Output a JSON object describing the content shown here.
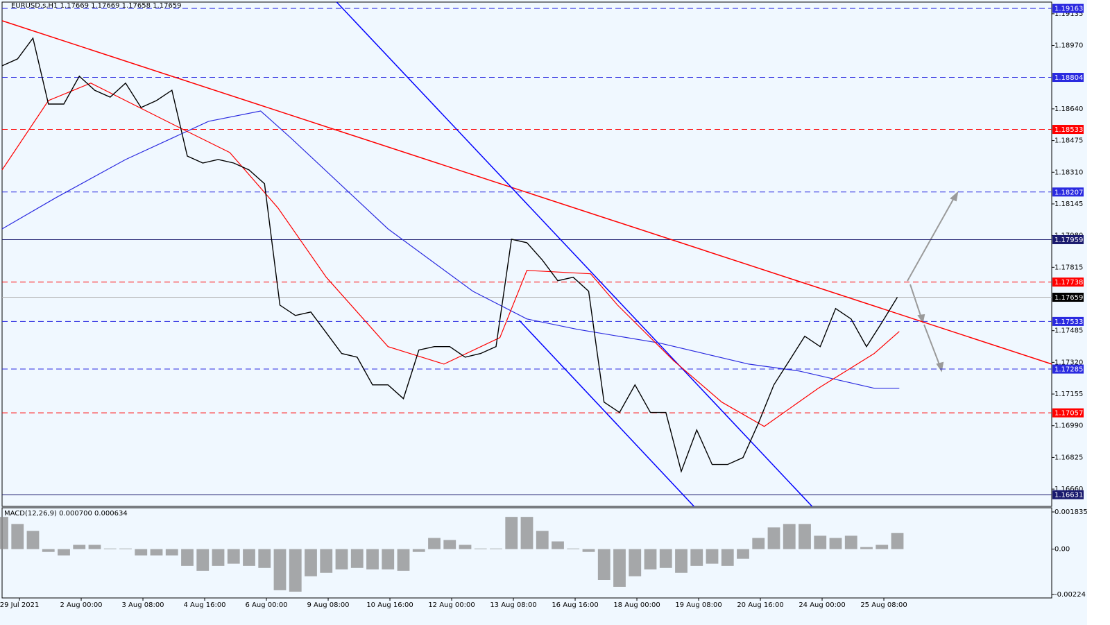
{
  "chart_data": [
    {
      "type": "line",
      "title": "EURUSD.s,H1  1.17669 1.17669 1.17658 1.17659",
      "x": [
        0,
        8,
        16,
        24,
        32,
        40,
        48,
        56,
        64,
        72,
        80,
        88,
        96,
        104,
        112,
        120,
        128,
        136,
        144,
        152,
        160,
        168,
        176,
        184,
        192,
        200,
        208,
        216,
        224,
        232,
        240,
        248,
        256,
        264,
        272,
        280,
        288,
        296,
        304,
        312,
        320,
        328,
        336,
        344,
        352,
        360,
        368,
        376,
        384,
        392,
        400,
        408,
        416,
        424,
        432,
        440,
        448,
        456,
        464
      ],
      "series": [
        {
          "color": "#000000",
          "values": [
            1.18864,
            1.189,
            1.19008,
            1.18665,
            1.18665,
            1.1881,
            1.18737,
            1.18701,
            1.18774,
            1.18647,
            1.18683,
            1.18737,
            1.18394,
            1.18358,
            1.18376,
            1.18358,
            1.18322,
            1.1825,
            1.17618,
            1.17564,
            1.17582,
            1.17474,
            1.17366,
            1.17347,
            1.17203,
            1.17203,
            1.17131,
            1.17384,
            1.17402,
            1.17402,
            1.17347,
            1.17366,
            1.17402,
            1.17961,
            1.17943,
            1.17853,
            1.17745,
            1.17763,
            1.1769,
            1.17113,
            1.17059,
            1.17203,
            1.17059,
            1.17059,
            1.16752,
            1.16968,
            1.16788,
            1.16788,
            1.16824,
            1.17004,
            1.17203,
            1.17329,
            1.17456,
            1.17402,
            1.176,
            1.17546,
            1.17402,
            1.17528,
            1.17659
          ]
        },
        {
          "color": "#ff0000",
          "x": [
            0,
            24,
            46,
            89,
            118,
            143,
            168,
            200,
            229,
            258,
            272,
            305,
            319,
            348,
            373,
            395,
            423,
            452,
            465
          ],
          "values": [
            1.18322,
            1.18683,
            1.18774,
            1.18557,
            1.18413,
            1.18124,
            1.17763,
            1.17402,
            1.17311,
            1.17449,
            1.17799,
            1.17781,
            1.17618,
            1.17329,
            1.17113,
            1.16986,
            1.17185,
            1.17366,
            1.17481
          ]
        },
        {
          "color": "#2a2ae0",
          "x": [
            0,
            28,
            64,
            107,
            134,
            150,
            200,
            244,
            272,
            298,
            341,
            387,
            413,
            452,
            465
          ],
          "values": [
            1.18015,
            1.18178,
            1.18376,
            1.18575,
            1.18629,
            1.18485,
            1.18015,
            1.1769,
            1.17546,
            1.17492,
            1.1742,
            1.17311,
            1.17275,
            1.17185,
            1.17185
          ]
        }
      ],
      "trendlines": [
        {
          "color": "#ff0000",
          "x": [
            0,
            544
          ],
          "values": [
            1.19099,
            1.17311
          ]
        },
        {
          "color": "#0000ff",
          "x": [
            173.4,
            419.8
          ],
          "values": [
            1.19196,
            1.1657
          ]
        },
        {
          "color": "#0000ff",
          "x": [
            268,
            358.6
          ],
          "values": [
            1.17539,
            1.1657
          ]
        }
      ],
      "levels": [
        {
          "value": 1.19163,
          "color": "#2a2ae0",
          "style": "dashed"
        },
        {
          "value": 1.18804,
          "color": "#2a2ae0",
          "style": "dashed"
        },
        {
          "value": 1.18533,
          "color": "#ff0000",
          "style": "dashed"
        },
        {
          "value": 1.18207,
          "color": "#2a2ae0",
          "style": "dashed"
        },
        {
          "value": 1.17959,
          "color": "#1a1a6e",
          "style": "solid"
        },
        {
          "value": 1.17738,
          "color": "#ff0000",
          "style": "dashed"
        },
        {
          "value": 1.17659,
          "color": "#000000",
          "style": "solid"
        },
        {
          "value": 1.17533,
          "color": "#2a2ae0",
          "style": "dashed"
        },
        {
          "value": 1.17285,
          "color": "#2a2ae0",
          "style": "dashed"
        },
        {
          "value": 1.17057,
          "color": "#ff0000",
          "style": "dashed"
        },
        {
          "value": 1.16631,
          "color": "#1a1a6e",
          "style": "solid"
        }
      ],
      "xlim": [
        0,
        544
      ],
      "xticks": [
        {
          "value": 9,
          "label": "29 Jul 2021"
        },
        {
          "value": 41,
          "label": "2 Aug 00:00"
        },
        {
          "value": 73,
          "label": "3 Aug 08:00"
        },
        {
          "value": 105,
          "label": "4 Aug 16:00"
        },
        {
          "value": 137,
          "label": "6 Aug 00:00"
        },
        {
          "value": 169,
          "label": "9 Aug 08:00"
        },
        {
          "value": 201,
          "label": "10 Aug 16:00"
        },
        {
          "value": 233,
          "label": "12 Aug 00:00"
        },
        {
          "value": 265,
          "label": "13 Aug 08:00"
        },
        {
          "value": 297,
          "label": "16 Aug 16:00"
        },
        {
          "value": 329,
          "label": "18 Aug 00:00"
        },
        {
          "value": 361,
          "label": "19 Aug 08:00"
        },
        {
          "value": 393,
          "label": "20 Aug 16:00"
        },
        {
          "value": 425,
          "label": "24 Aug 00:00"
        },
        {
          "value": 457,
          "label": "25 Aug 08:00"
        }
      ],
      "ylim": [
        1.1657,
        1.19196
      ],
      "yticks": [
        1.19135,
        {
          "value": 1.1897,
          "label": "1.18970"
        },
        {
          "value": 1.1864,
          "label": "1.18640"
        },
        1.18475,
        {
          "value": 1.1831,
          "label": "1.18310"
        },
        1.18145,
        {
          "value": 1.1798,
          "label": "1.17980"
        },
        1.17815,
        1.17485,
        {
          "value": 1.1732,
          "label": "1.17320"
        },
        1.17155,
        {
          "value": 1.1699,
          "label": "1.16990"
        },
        1.16825,
        {
          "value": 1.1666,
          "label": "1.16660"
        }
      ]
    },
    {
      "type": "bar",
      "title": "MACD(12,26,9) 0.000700 0.000634",
      "color": "#8c8c8c",
      "x": [
        0,
        8,
        16,
        24,
        32,
        40,
        48,
        56,
        64,
        72,
        80,
        88,
        96,
        104,
        112,
        120,
        128,
        136,
        144,
        152,
        160,
        168,
        176,
        184,
        192,
        200,
        208,
        216,
        224,
        232,
        240,
        248,
        256,
        264,
        272,
        280,
        288,
        296,
        304,
        312,
        320,
        328,
        336,
        344,
        352,
        360,
        368,
        376,
        384,
        392,
        400,
        408,
        416,
        424,
        432,
        440,
        448,
        456,
        464
      ],
      "values": [
        0.00159,
        0.00124,
        0.0009,
        -0.00014,
        -0.00031,
        0.00021,
        0.00021,
        3e-05,
        3e-05,
        -0.00031,
        -0.00031,
        -0.00031,
        -0.00083,
        -0.00107,
        -0.00083,
        -0.00072,
        -0.00083,
        -0.00093,
        -0.00203,
        -0.0021,
        -0.00134,
        -0.00117,
        -0.001,
        -0.00093,
        -0.001,
        -0.001,
        -0.00107,
        -0.00014,
        0.00055,
        0.00045,
        0.00021,
        3e-05,
        3e-05,
        0.00159,
        0.00159,
        0.0009,
        0.00038,
        3e-05,
        -0.00014,
        -0.00152,
        -0.00186,
        -0.00134,
        -0.001,
        -0.00093,
        -0.00117,
        -0.00083,
        -0.00072,
        -0.00083,
        -0.00048,
        0.00055,
        0.00107,
        0.00124,
        0.00124,
        0.00066,
        0.00055,
        0.00066,
        0.0001,
        0.00021,
        0.0008
      ],
      "ylim": [
        -0.00241,
        0.00204
      ],
      "yticks": [
        0.001835,
        {
          "value": 0,
          "label": "0.00"
        },
        -0.00224
      ]
    }
  ]
}
